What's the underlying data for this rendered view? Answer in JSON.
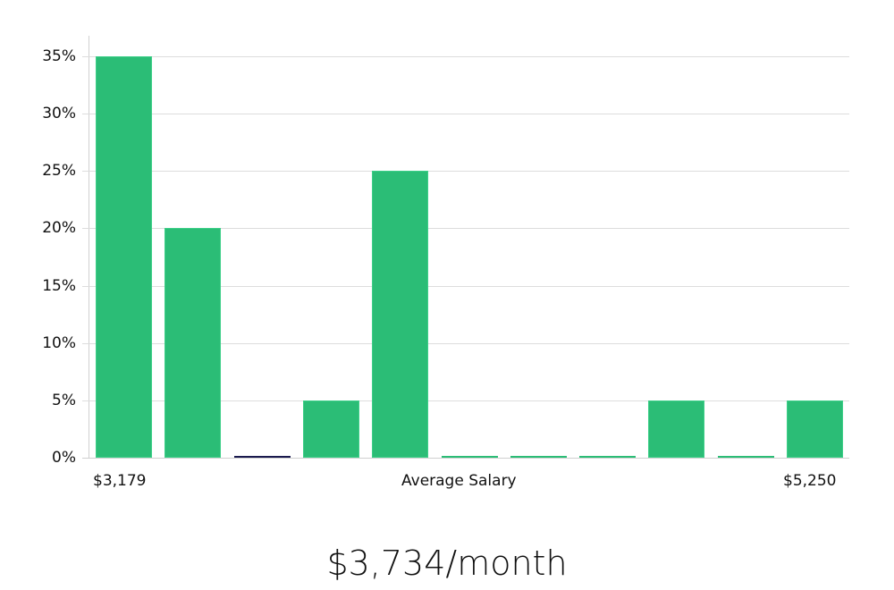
{
  "chart_data": {
    "type": "bar",
    "title": "",
    "xlabel": "Average Salary",
    "ylabel": "",
    "categories": [
      "bin1",
      "bin2",
      "bin3",
      "bin4",
      "bin5",
      "bin6",
      "bin7",
      "bin8",
      "bin9",
      "bin10",
      "bin11"
    ],
    "values": [
      35,
      20,
      0,
      5,
      25,
      0,
      0,
      0,
      5,
      0,
      5
    ],
    "ylim": [
      0,
      35
    ],
    "yticks": [
      "0%",
      "5%",
      "10%",
      "15%",
      "20%",
      "25%",
      "30%",
      "35%"
    ],
    "x_min_label": "$3,179",
    "x_max_label": "$5,250",
    "grid": true,
    "bar_color": "#2bbd76",
    "zero_line_colors": [
      "#2bbd76",
      "#2bbd76",
      "#1a1a4e",
      "#2bbd76",
      "#2bbd76",
      "#2bbd76",
      "#2bbd76",
      "#2bbd76",
      "#2bbd76",
      "#2bbd76",
      "#2bbd76"
    ]
  },
  "labels": {
    "x_min": "$3,179",
    "x_center": "Average Salary",
    "x_max": "$5,250"
  },
  "summary": {
    "salary": "$3,734/month"
  }
}
